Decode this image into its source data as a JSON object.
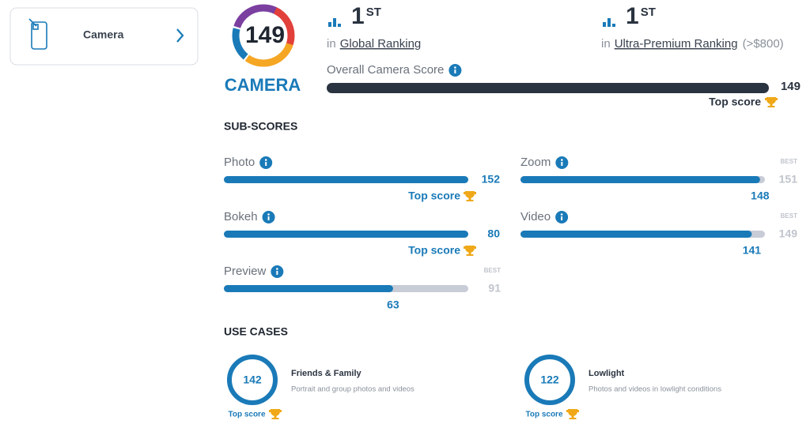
{
  "sidebar": {
    "label": "Camera"
  },
  "badge": {
    "score": 149,
    "label": "CAMERA"
  },
  "rankings": [
    {
      "rank": 1,
      "suffix": "ST",
      "prefix": "in",
      "name": "Global Ranking"
    },
    {
      "rank": 1,
      "suffix": "ST",
      "prefix": "in",
      "name": "Ultra-Premium Ranking",
      "note": "(>$800)"
    }
  ],
  "overall": {
    "label": "Overall Camera Score",
    "value": 149,
    "top": "Top score"
  },
  "subscores": {
    "title": "SUB-SCORES",
    "left": [
      {
        "name": "Photo",
        "value": 152,
        "top": "Top score"
      },
      {
        "name": "Bokeh",
        "value": 80,
        "top": "Top score"
      },
      {
        "name": "Preview",
        "value": 63,
        "best_label": "BEST",
        "best": 91
      }
    ],
    "right": [
      {
        "name": "Zoom",
        "value": 148,
        "best_label": "BEST",
        "best": 151
      },
      {
        "name": "Video",
        "value": 141,
        "best_label": "BEST",
        "best": 149
      }
    ]
  },
  "use_cases": {
    "title": "USE CASES",
    "items": [
      {
        "score": 142,
        "name": "Friends & Family",
        "desc": "Portrait and group photos and videos",
        "top": "Top score"
      },
      {
        "score": 122,
        "name": "Lowlight",
        "desc": "Photos and videos in lowlight conditions",
        "top": "Top score"
      }
    ]
  }
}
